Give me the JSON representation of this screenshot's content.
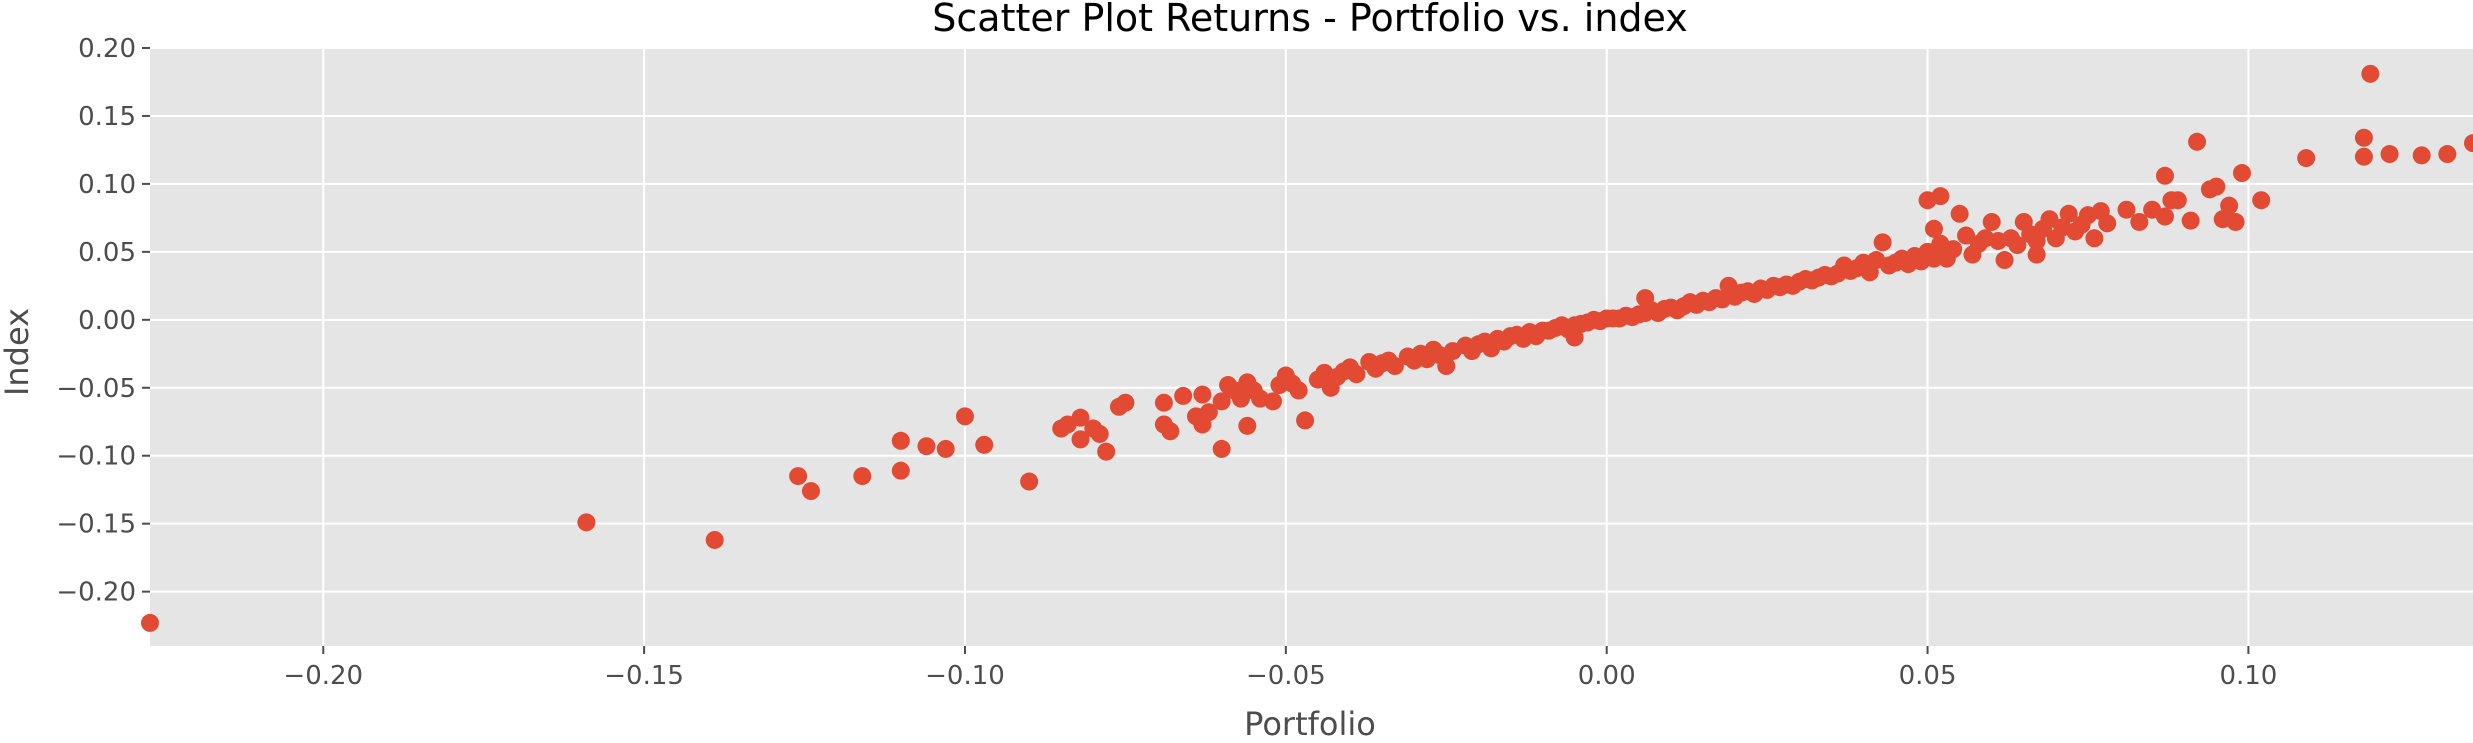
{
  "chart_data": {
    "type": "scatter",
    "title": "Scatter Plot Returns - Portfolio vs. index",
    "xlabel": "Portfolio",
    "ylabel": "Index",
    "xlim": [
      -0.227,
      0.135
    ],
    "ylim": [
      -0.24,
      0.2
    ],
    "x_ticks": [
      -0.2,
      -0.15,
      -0.1,
      -0.05,
      0.0,
      0.05,
      0.1
    ],
    "x_tick_labels": [
      "−0.20",
      "−0.15",
      "−0.10",
      "−0.05",
      "0.00",
      "0.05",
      "0.10"
    ],
    "y_ticks": [
      -0.2,
      -0.15,
      -0.1,
      -0.05,
      0.0,
      0.05,
      0.1,
      0.15,
      0.2
    ],
    "y_tick_labels": [
      "−0.20",
      "−0.15",
      "−0.10",
      "−0.05",
      "0.00",
      "0.05",
      "0.10",
      "0.15",
      "0.20"
    ],
    "grid": true,
    "style": "ggplot",
    "colors": {
      "marker": "#E24A33",
      "plot_background": "#E5E5E5",
      "grid": "#FFFFFF",
      "tick": "#4D4D4D"
    },
    "points": [
      [
        -0.227,
        -0.223
      ],
      [
        -0.159,
        -0.149
      ],
      [
        -0.139,
        -0.162
      ],
      [
        -0.126,
        -0.115
      ],
      [
        -0.124,
        -0.126
      ],
      [
        -0.116,
        -0.115
      ],
      [
        -0.11,
        -0.111
      ],
      [
        -0.11,
        -0.089
      ],
      [
        -0.106,
        -0.093
      ],
      [
        -0.103,
        -0.095
      ],
      [
        -0.1,
        -0.071
      ],
      [
        -0.097,
        -0.092
      ],
      [
        -0.09,
        -0.119
      ],
      [
        -0.085,
        -0.08
      ],
      [
        -0.084,
        -0.077
      ],
      [
        -0.082,
        -0.088
      ],
      [
        -0.082,
        -0.072
      ],
      [
        -0.08,
        -0.08
      ],
      [
        -0.079,
        -0.084
      ],
      [
        -0.078,
        -0.097
      ],
      [
        -0.076,
        -0.064
      ],
      [
        -0.075,
        -0.061
      ],
      [
        -0.069,
        -0.077
      ],
      [
        -0.069,
        -0.061
      ],
      [
        -0.068,
        -0.082
      ],
      [
        -0.066,
        -0.056
      ],
      [
        -0.064,
        -0.071
      ],
      [
        -0.063,
        -0.077
      ],
      [
        -0.063,
        -0.055
      ],
      [
        -0.062,
        -0.068
      ],
      [
        -0.06,
        -0.095
      ],
      [
        -0.06,
        -0.06
      ],
      [
        -0.059,
        -0.048
      ],
      [
        -0.058,
        -0.052
      ],
      [
        -0.057,
        -0.058
      ],
      [
        -0.056,
        -0.078
      ],
      [
        -0.056,
        -0.046
      ],
      [
        -0.055,
        -0.052
      ],
      [
        -0.054,
        -0.058
      ],
      [
        -0.052,
        -0.06
      ],
      [
        -0.051,
        -0.048
      ],
      [
        -0.05,
        -0.041
      ],
      [
        -0.049,
        -0.047
      ],
      [
        -0.048,
        -0.052
      ],
      [
        -0.047,
        -0.074
      ],
      [
        -0.045,
        -0.044
      ],
      [
        -0.044,
        -0.039
      ],
      [
        -0.043,
        -0.05
      ],
      [
        -0.042,
        -0.042
      ],
      [
        -0.041,
        -0.038
      ],
      [
        -0.04,
        -0.035
      ],
      [
        -0.039,
        -0.04
      ],
      [
        -0.037,
        -0.031
      ],
      [
        -0.036,
        -0.036
      ],
      [
        -0.035,
        -0.032
      ],
      [
        -0.034,
        -0.03
      ],
      [
        -0.033,
        -0.034
      ],
      [
        -0.031,
        -0.027
      ],
      [
        -0.03,
        -0.03
      ],
      [
        -0.029,
        -0.025
      ],
      [
        -0.028,
        -0.029
      ],
      [
        -0.027,
        -0.022
      ],
      [
        -0.026,
        -0.026
      ],
      [
        -0.025,
        -0.034
      ],
      [
        -0.024,
        -0.023
      ],
      [
        -0.022,
        -0.019
      ],
      [
        -0.021,
        -0.023
      ],
      [
        -0.02,
        -0.018
      ],
      [
        -0.019,
        -0.016
      ],
      [
        -0.018,
        -0.021
      ],
      [
        -0.017,
        -0.014
      ],
      [
        -0.016,
        -0.016
      ],
      [
        -0.015,
        -0.012
      ],
      [
        -0.014,
        -0.011
      ],
      [
        -0.013,
        -0.014
      ],
      [
        -0.012,
        -0.009
      ],
      [
        -0.011,
        -0.012
      ],
      [
        -0.01,
        -0.008
      ],
      [
        -0.009,
        -0.008
      ],
      [
        -0.008,
        -0.006
      ],
      [
        -0.007,
        -0.004
      ],
      [
        -0.006,
        -0.007
      ],
      [
        -0.005,
        -0.013
      ],
      [
        -0.005,
        -0.004
      ],
      [
        -0.004,
        -0.003
      ],
      [
        -0.003,
        -0.002
      ],
      [
        -0.002,
        0.0
      ],
      [
        -0.001,
        -0.001
      ],
      [
        0.0,
        0.001
      ],
      [
        0.001,
        0.001
      ],
      [
        0.002,
        0.001
      ],
      [
        0.003,
        0.003
      ],
      [
        0.004,
        0.002
      ],
      [
        0.005,
        0.004
      ],
      [
        0.006,
        0.005
      ],
      [
        0.006,
        0.016
      ],
      [
        0.007,
        0.007
      ],
      [
        0.008,
        0.005
      ],
      [
        0.009,
        0.008
      ],
      [
        0.01,
        0.009
      ],
      [
        0.011,
        0.007
      ],
      [
        0.012,
        0.01
      ],
      [
        0.013,
        0.013
      ],
      [
        0.014,
        0.011
      ],
      [
        0.015,
        0.014
      ],
      [
        0.016,
        0.013
      ],
      [
        0.017,
        0.016
      ],
      [
        0.018,
        0.015
      ],
      [
        0.019,
        0.018
      ],
      [
        0.019,
        0.025
      ],
      [
        0.02,
        0.017
      ],
      [
        0.021,
        0.02
      ],
      [
        0.022,
        0.021
      ],
      [
        0.023,
        0.019
      ],
      [
        0.024,
        0.023
      ],
      [
        0.025,
        0.022
      ],
      [
        0.026,
        0.025
      ],
      [
        0.027,
        0.024
      ],
      [
        0.028,
        0.026
      ],
      [
        0.029,
        0.025
      ],
      [
        0.03,
        0.028
      ],
      [
        0.031,
        0.03
      ],
      [
        0.032,
        0.029
      ],
      [
        0.033,
        0.031
      ],
      [
        0.034,
        0.033
      ],
      [
        0.035,
        0.032
      ],
      [
        0.036,
        0.034
      ],
      [
        0.037,
        0.04
      ],
      [
        0.038,
        0.036
      ],
      [
        0.039,
        0.038
      ],
      [
        0.04,
        0.042
      ],
      [
        0.041,
        0.035
      ],
      [
        0.042,
        0.044
      ],
      [
        0.043,
        0.057
      ],
      [
        0.044,
        0.04
      ],
      [
        0.045,
        0.042
      ],
      [
        0.046,
        0.045
      ],
      [
        0.047,
        0.041
      ],
      [
        0.048,
        0.047
      ],
      [
        0.049,
        0.043
      ],
      [
        0.05,
        0.05
      ],
      [
        0.05,
        0.088
      ],
      [
        0.051,
        0.045
      ],
      [
        0.051,
        0.067
      ],
      [
        0.052,
        0.091
      ],
      [
        0.052,
        0.056
      ],
      [
        0.053,
        0.045
      ],
      [
        0.054,
        0.052
      ],
      [
        0.055,
        0.078
      ],
      [
        0.056,
        0.062
      ],
      [
        0.057,
        0.048
      ],
      [
        0.058,
        0.056
      ],
      [
        0.059,
        0.06
      ],
      [
        0.06,
        0.072
      ],
      [
        0.061,
        0.058
      ],
      [
        0.062,
        0.044
      ],
      [
        0.063,
        0.06
      ],
      [
        0.064,
        0.055
      ],
      [
        0.065,
        0.072
      ],
      [
        0.066,
        0.063
      ],
      [
        0.067,
        0.048
      ],
      [
        0.067,
        0.058
      ],
      [
        0.068,
        0.067
      ],
      [
        0.069,
        0.074
      ],
      [
        0.07,
        0.06
      ],
      [
        0.071,
        0.068
      ],
      [
        0.072,
        0.078
      ],
      [
        0.073,
        0.065
      ],
      [
        0.074,
        0.07
      ],
      [
        0.075,
        0.077
      ],
      [
        0.076,
        0.06
      ],
      [
        0.077,
        0.08
      ],
      [
        0.078,
        0.071
      ],
      [
        0.081,
        0.081
      ],
      [
        0.083,
        0.072
      ],
      [
        0.085,
        0.081
      ],
      [
        0.087,
        0.106
      ],
      [
        0.087,
        0.076
      ],
      [
        0.088,
        0.088
      ],
      [
        0.089,
        0.088
      ],
      [
        0.091,
        0.073
      ],
      [
        0.092,
        0.131
      ],
      [
        0.094,
        0.096
      ],
      [
        0.095,
        0.098
      ],
      [
        0.096,
        0.074
      ],
      [
        0.097,
        0.084
      ],
      [
        0.098,
        0.072
      ],
      [
        0.099,
        0.108
      ],
      [
        0.102,
        0.088
      ],
      [
        0.109,
        0.119
      ],
      [
        0.118,
        0.12
      ],
      [
        0.118,
        0.134
      ],
      [
        0.119,
        0.181
      ],
      [
        0.122,
        0.122
      ],
      [
        0.127,
        0.121
      ],
      [
        0.131,
        0.122
      ],
      [
        0.135,
        0.13
      ]
    ]
  }
}
